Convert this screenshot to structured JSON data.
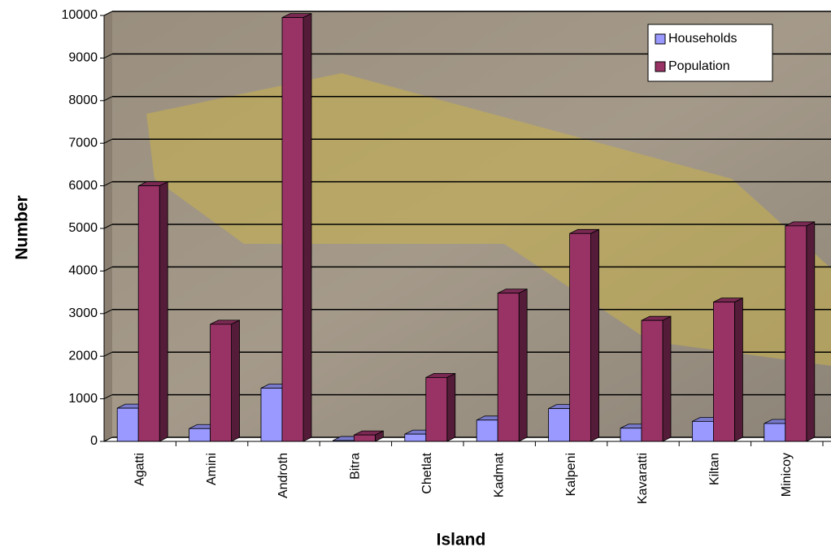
{
  "chart_data": {
    "type": "bar3d",
    "x_label": "Island",
    "y_label": "Number",
    "categories": [
      "Agatti",
      "Amini",
      "Androth",
      "Bitra",
      "Chetlat",
      "Kadmat",
      "Kalpeni",
      "Kavaratti",
      "Kiltan",
      "Minicoy"
    ],
    "series": [
      {
        "name": "Households",
        "color": "#9999ff",
        "values": [
          780,
          300,
          1250,
          20,
          170,
          500,
          770,
          310,
          470,
          420
        ]
      },
      {
        "name": "Population",
        "color": "#993366",
        "values": [
          6000,
          2750,
          9950,
          150,
          1500,
          3480,
          4880,
          2840,
          3270,
          5060
        ]
      }
    ],
    "ylim": [
      0,
      10000
    ],
    "yticks": [
      0,
      1000,
      2000,
      3000,
      4000,
      5000,
      6000,
      7000,
      8000,
      9000,
      10000
    ],
    "grid": true,
    "legend": "top-right"
  }
}
